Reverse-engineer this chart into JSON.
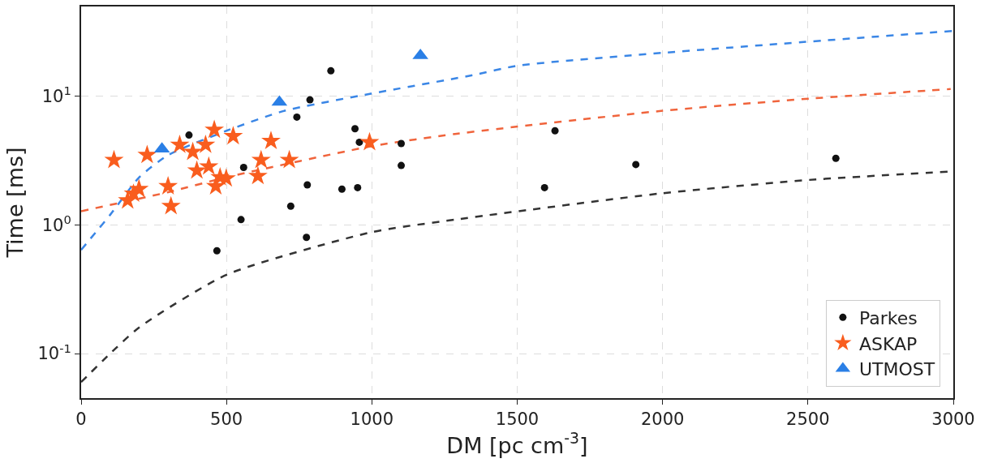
{
  "chart_data": {
    "type": "scatter",
    "xlabel": "DM [pc cm$^{-3}$]",
    "ylabel": "Time [ms]",
    "log": "y",
    "grid": true,
    "legend": "bottom right",
    "xlim": [
      0,
      3000
    ],
    "xticks": [
      0,
      500,
      1000,
      1500,
      2000,
      2500,
      3000
    ],
    "ylim": [
      0.045,
      50
    ],
    "yticks": [
      {
        "value": 0.1,
        "label": "10$^{-1}$"
      },
      {
        "value": 1,
        "label": "10$^{0}$"
      },
      {
        "value": 10,
        "label": "10$^{1}$"
      }
    ],
    "series": [
      {
        "name": "Parkes",
        "color": "#111111",
        "marker": "circle",
        "x": [
          859,
          787,
          742,
          371,
          942,
          957,
          1101,
          1101,
          559,
          778,
          897,
          951,
          721,
          550,
          775,
          467,
          1630,
          1594,
          1908,
          2596
        ],
        "values": [
          15.8,
          9.4,
          6.9,
          5.0,
          5.6,
          4.4,
          4.3,
          2.9,
          2.8,
          2.05,
          1.9,
          1.95,
          1.4,
          1.1,
          0.8,
          0.63,
          5.4,
          1.95,
          2.95,
          3.3
        ]
      },
      {
        "name": "ASKAP",
        "color": "#f95d1e",
        "marker": "star",
        "x": [
          113,
          227,
          339,
          384,
          428,
          458,
          523,
          653,
          619,
          716,
          992,
          398,
          439,
          478,
          463,
          499,
          608,
          299,
          309,
          199,
          160,
          180
        ],
        "values": [
          3.2,
          3.5,
          4.2,
          3.7,
          4.2,
          5.5,
          4.9,
          4.5,
          3.2,
          3.2,
          4.4,
          2.65,
          2.85,
          2.35,
          2.0,
          2.3,
          2.4,
          2.0,
          1.4,
          1.9,
          1.55,
          1.75
        ]
      },
      {
        "name": "UTMOST",
        "color": "#2a7fe6",
        "marker": "triangle",
        "x": [
          278,
          682,
          1167
        ],
        "values": [
          3.9,
          9.0,
          20.8
        ]
      },
      {
        "type": "line",
        "line_style": "dashed",
        "color": "#3a86e6",
        "marker": "none",
        "x": [
          0,
          100,
          200,
          300,
          500,
          697,
          997,
          1346,
          1500,
          2000,
          3000
        ],
        "values": [
          0.64,
          1.2,
          2.35,
          3.5,
          5.4,
          7.7,
          10.5,
          14.6,
          17.3,
          21.8,
          32.3
        ]
      },
      {
        "type": "line",
        "line_style": "dashed",
        "color": "#f0643c",
        "marker": "none",
        "x": [
          0,
          300,
          500,
          1000,
          1286,
          1995,
          2504,
          2991
        ],
        "values": [
          1.28,
          1.8,
          2.35,
          4.1,
          5.1,
          7.7,
          9.6,
          11.4
        ]
      },
      {
        "type": "line",
        "line_style": "dashed",
        "color": "#333333",
        "marker": "none",
        "x": [
          0,
          100,
          200,
          500,
          1000,
          1286,
          1995,
          2504,
          2991
        ],
        "values": [
          0.06,
          0.1,
          0.16,
          0.41,
          0.88,
          1.1,
          1.76,
          2.24,
          2.6
        ]
      }
    ]
  }
}
